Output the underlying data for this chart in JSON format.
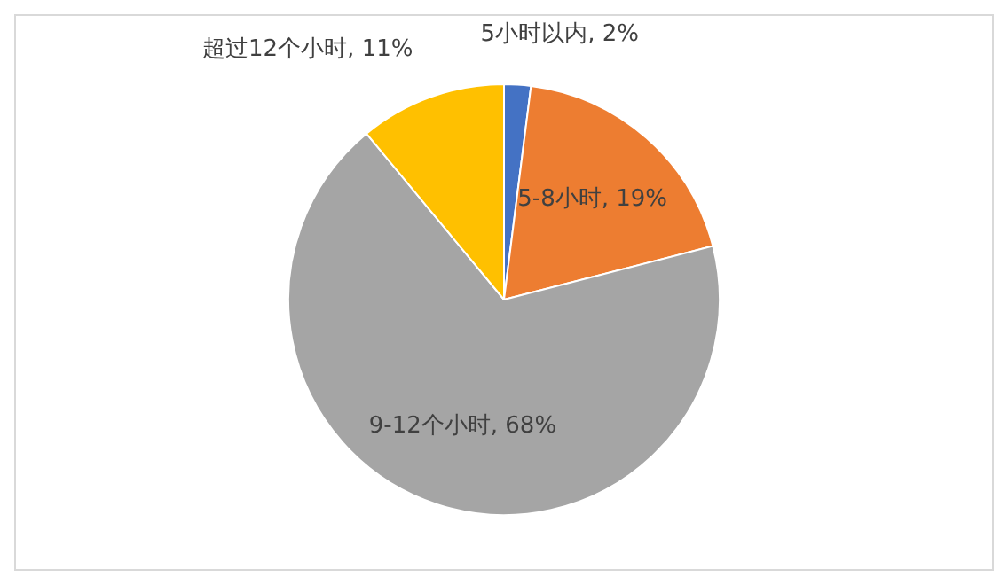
{
  "chart_data": {
    "type": "pie",
    "categories": [
      "5小时以内",
      "5-8小时",
      "9-12个小时",
      "超过12个小时"
    ],
    "values": [
      2,
      19,
      68,
      11
    ],
    "colors": [
      "#4472c4",
      "#ed7d31",
      "#a5a5a5",
      "#ffc000"
    ],
    "value_labels": [
      "2%",
      "19%",
      "68%",
      "11%"
    ],
    "legend": false
  }
}
